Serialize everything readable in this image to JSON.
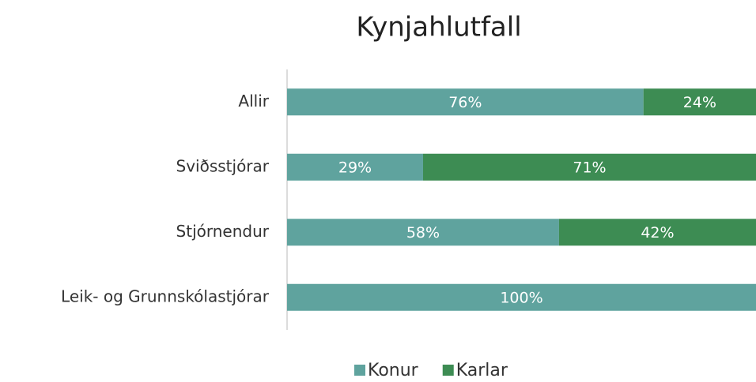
{
  "chart_data": {
    "type": "stacked_barh",
    "title": "Kynjahlutfall",
    "categories": [
      "Allir",
      "Sviðsstjórar",
      "Stjórnendur",
      "Leik- og Grunnskólastjórar"
    ],
    "series": [
      {
        "name": "Konur",
        "color": "#5fa39e",
        "values": [
          76,
          29,
          58,
          100
        ],
        "value_labels": [
          "76%",
          "29%",
          "58%",
          "100%"
        ]
      },
      {
        "name": "Karlar",
        "color": "#3d8c53",
        "values": [
          24,
          71,
          42,
          0
        ],
        "value_labels": [
          "24%",
          "71%",
          "42%",
          null
        ]
      }
    ],
    "xlim": [
      0,
      100
    ],
    "legend": "bottom"
  }
}
